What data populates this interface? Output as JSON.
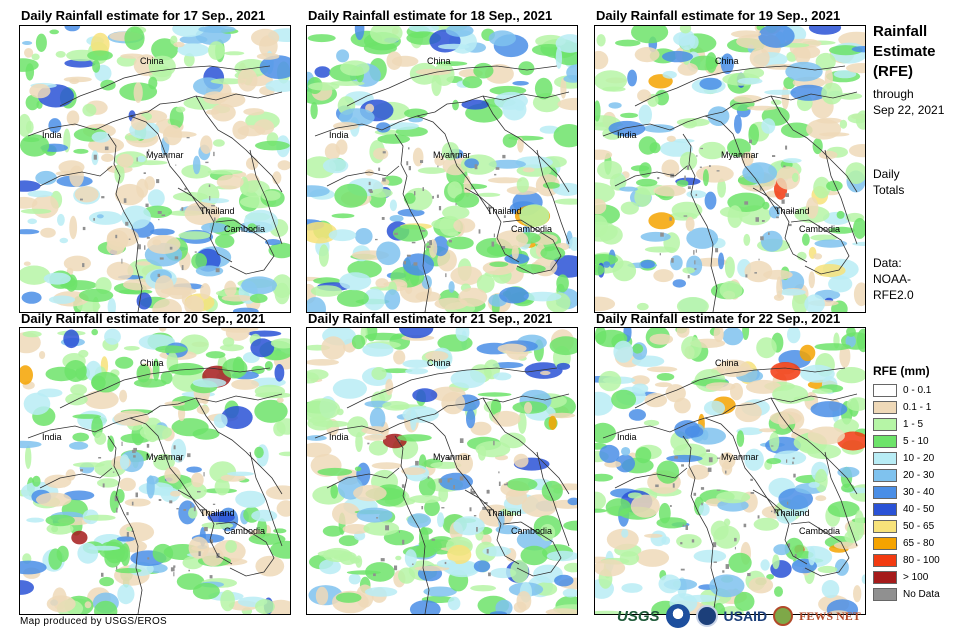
{
  "panels": [
    {
      "title": "Daily Rainfall estimate for 17 Sep., 2021",
      "seed": 17
    },
    {
      "title": "Daily Rainfall estimate for 18 Sep., 2021",
      "seed": 18
    },
    {
      "title": "Daily Rainfall estimate for 19 Sep., 2021",
      "seed": 19
    },
    {
      "title": "Daily Rainfall estimate for 20 Sep., 2021",
      "seed": 20
    },
    {
      "title": "Daily Rainfall estimate for 21 Sep., 2021",
      "seed": 21
    },
    {
      "title": "Daily Rainfall estimate for 22 Sep., 2021",
      "seed": 22
    }
  ],
  "country_labels": {
    "china": "China",
    "india": "India",
    "myanmar": "Myanmar",
    "thailand": "Thailand",
    "cambodia": "Cambodia"
  },
  "sidebar": {
    "title_line1": "Rainfall",
    "title_line2": "Estimate",
    "title_line3": "(RFE)",
    "through_line1": "through",
    "through_line2": "Sep 22, 2021",
    "totals_line1": "Daily",
    "totals_line2": "Totals",
    "data_line1": "Data:",
    "data_line2": "NOAA-",
    "data_line3": "RFE2.0"
  },
  "legend": {
    "title": "RFE (mm)",
    "items": [
      {
        "label": "0 - 0.1",
        "color": "#ffffff"
      },
      {
        "label": "0.1 - 1",
        "color": "#efd9b8"
      },
      {
        "label": "1 - 5",
        "color": "#b6f5a6"
      },
      {
        "label": "5 - 10",
        "color": "#6de36a"
      },
      {
        "label": "10 - 20",
        "color": "#b8ecf5"
      },
      {
        "label": "20 - 30",
        "color": "#7fc2ee"
      },
      {
        "label": "30 - 40",
        "color": "#4a8ee6"
      },
      {
        "label": "40 - 50",
        "color": "#2a52d6"
      },
      {
        "label": "50 - 65",
        "color": "#f7e27a"
      },
      {
        "label": "65 - 80",
        "color": "#f5a300"
      },
      {
        "label": "80 - 100",
        "color": "#f23a10"
      },
      {
        "label": "> 100",
        "color": "#a51b1b"
      },
      {
        "label": "No Data",
        "color": "#909090"
      }
    ]
  },
  "credit": "Map produced by USGS/EROS",
  "logos": {
    "usgs": "USGS",
    "usaid": "USAID",
    "fews": "FEWS NET"
  }
}
